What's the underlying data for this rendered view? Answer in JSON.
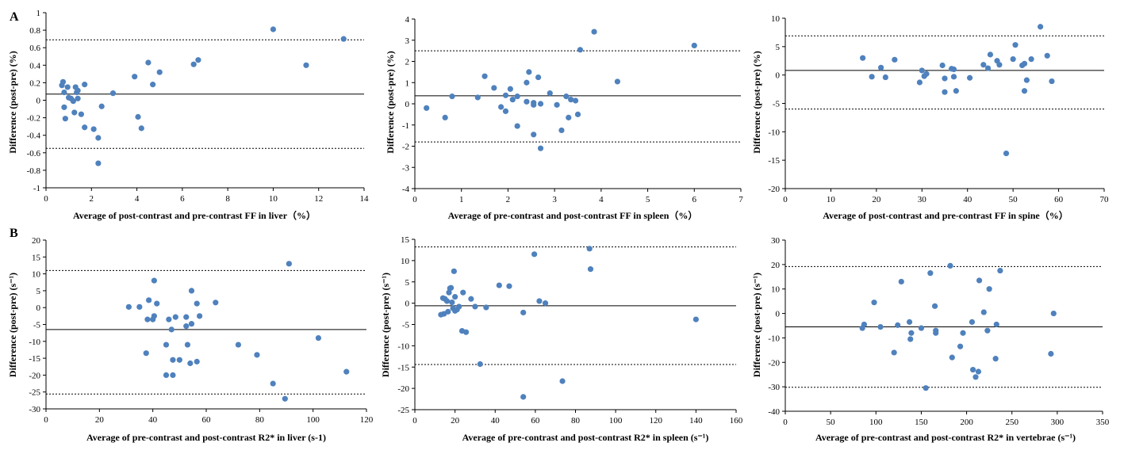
{
  "panel_labels": [
    "A",
    "B"
  ],
  "chart_data": [
    {
      "type": "scatter",
      "xlabel": "Average of post-contrast and pre-contrast FF in liver（%）",
      "ylabel": "Difference (post-pre) (%)",
      "xlim": [
        0,
        14
      ],
      "ylim": [
        -1,
        1
      ],
      "xticks": [
        0,
        2,
        4,
        6,
        8,
        10,
        12,
        14
      ],
      "yticks": [
        -1,
        -0.8,
        -0.6,
        -0.4,
        -0.2,
        0,
        0.2,
        0.4,
        0.6,
        0.8,
        1
      ],
      "mean": 0.07,
      "upper_loa": 0.69,
      "lower_loa": -0.55,
      "points": [
        [
          0.7,
          0.17
        ],
        [
          0.75,
          0.21
        ],
        [
          0.8,
          0.09
        ],
        [
          0.8,
          -0.08
        ],
        [
          0.85,
          -0.21
        ],
        [
          0.95,
          0.15
        ],
        [
          1.0,
          0.03
        ],
        [
          1.1,
          0.02
        ],
        [
          1.2,
          -0.01
        ],
        [
          1.25,
          -0.14
        ],
        [
          1.3,
          0.15
        ],
        [
          1.35,
          0.09
        ],
        [
          1.4,
          0.11
        ],
        [
          1.4,
          0.02
        ],
        [
          1.55,
          -0.16
        ],
        [
          1.7,
          -0.31
        ],
        [
          1.7,
          0.18
        ],
        [
          2.1,
          -0.33
        ],
        [
          2.3,
          -0.43
        ],
        [
          2.3,
          -0.72
        ],
        [
          2.45,
          -0.07
        ],
        [
          2.95,
          0.08
        ],
        [
          3.9,
          0.27
        ],
        [
          4.05,
          -0.19
        ],
        [
          4.2,
          -0.32
        ],
        [
          4.5,
          0.43
        ],
        [
          4.7,
          0.18
        ],
        [
          5.0,
          0.32
        ],
        [
          6.5,
          0.41
        ],
        [
          6.7,
          0.46
        ],
        [
          10.0,
          0.81
        ],
        [
          11.45,
          0.4
        ],
        [
          13.1,
          0.7
        ]
      ]
    },
    {
      "type": "scatter",
      "xlabel": "Average of pre-contrast and post-contrast FF in spleen（%）",
      "ylabel": "Difference (post-pre) (%)",
      "xlim": [
        0,
        7
      ],
      "ylim": [
        -4,
        4
      ],
      "xticks": [
        0,
        1,
        2,
        3,
        4,
        5,
        6,
        7
      ],
      "yticks": [
        -4,
        -3,
        -2,
        -1,
        0,
        1,
        2,
        3,
        4
      ],
      "mean": 0.38,
      "upper_loa": 2.5,
      "lower_loa": -1.8,
      "points": [
        [
          0.25,
          -0.2
        ],
        [
          0.65,
          -0.65
        ],
        [
          0.8,
          0.35
        ],
        [
          1.35,
          0.3
        ],
        [
          1.5,
          1.3
        ],
        [
          1.7,
          0.75
        ],
        [
          1.85,
          -0.15
        ],
        [
          1.95,
          0.4
        ],
        [
          1.95,
          -0.35
        ],
        [
          2.05,
          0.7
        ],
        [
          2.1,
          0.2
        ],
        [
          2.2,
          -1.05
        ],
        [
          2.2,
          0.35
        ],
        [
          2.4,
          1.0
        ],
        [
          2.4,
          0.1
        ],
        [
          2.45,
          1.5
        ],
        [
          2.55,
          -1.45
        ],
        [
          2.55,
          0.05
        ],
        [
          2.55,
          -0.05
        ],
        [
          2.65,
          1.25
        ],
        [
          2.7,
          0.0
        ],
        [
          2.7,
          -2.1
        ],
        [
          2.9,
          0.5
        ],
        [
          3.05,
          -0.05
        ],
        [
          3.15,
          -1.25
        ],
        [
          3.25,
          0.35
        ],
        [
          3.3,
          -0.65
        ],
        [
          3.35,
          0.2
        ],
        [
          3.45,
          0.15
        ],
        [
          3.5,
          -0.5
        ],
        [
          3.55,
          2.55
        ],
        [
          3.85,
          3.4
        ],
        [
          4.35,
          1.05
        ],
        [
          6.0,
          2.75
        ]
      ]
    },
    {
      "type": "scatter",
      "xlabel": "Average of post-contrast and pre-contrast FF in spine（%）",
      "ylabel": "Difference (post-pre) (%)",
      "xlim": [
        0,
        70
      ],
      "ylim": [
        -20,
        10
      ],
      "xticks": [
        0,
        10,
        20,
        30,
        40,
        50,
        60,
        70
      ],
      "yticks": [
        -20,
        -15,
        -10,
        -5,
        0,
        5,
        10
      ],
      "mean": 0.8,
      "upper_loa": 6.9,
      "lower_loa": -6.0,
      "points": [
        [
          17,
          3.0
        ],
        [
          19,
          -0.3
        ],
        [
          21,
          1.3
        ],
        [
          22,
          -0.4
        ],
        [
          24,
          2.7
        ],
        [
          29.5,
          -1.3
        ],
        [
          30,
          0.8
        ],
        [
          30.5,
          -0.2
        ],
        [
          31,
          0.2
        ],
        [
          34.5,
          1.7
        ],
        [
          35,
          -3.0
        ],
        [
          35,
          -0.6
        ],
        [
          36.5,
          1.1
        ],
        [
          37,
          1.0
        ],
        [
          37,
          -0.3
        ],
        [
          37.5,
          -2.8
        ],
        [
          40.5,
          -0.5
        ],
        [
          43.5,
          1.8
        ],
        [
          44.5,
          1.2
        ],
        [
          45,
          3.6
        ],
        [
          46.5,
          2.5
        ],
        [
          47,
          1.8
        ],
        [
          48.5,
          -13.8
        ],
        [
          50,
          2.8
        ],
        [
          50.5,
          5.3
        ],
        [
          52,
          1.7
        ],
        [
          52.5,
          2.0
        ],
        [
          52.5,
          -2.8
        ],
        [
          53,
          -0.9
        ],
        [
          54,
          2.8
        ],
        [
          56,
          8.5
        ],
        [
          57.5,
          3.4
        ],
        [
          58.5,
          -1.1
        ]
      ]
    },
    {
      "type": "scatter",
      "xlabel": "Average of pre-contrast and post-contrast R2* in liver (s-1)",
      "ylabel": "Difference (post-pre) (s⁻¹)",
      "xlim": [
        0,
        120
      ],
      "ylim": [
        -30,
        20
      ],
      "xticks": [
        0,
        20,
        40,
        60,
        80,
        100,
        120
      ],
      "yticks": [
        -30,
        -25,
        -20,
        -15,
        -10,
        -5,
        0,
        5,
        10,
        15,
        20
      ],
      "mean": -6.5,
      "upper_loa": 11.0,
      "lower_loa": -25.6,
      "points": [
        [
          31,
          0.2
        ],
        [
          35,
          0.2
        ],
        [
          37.5,
          -13.5
        ],
        [
          38,
          -3.5
        ],
        [
          38.5,
          2.2
        ],
        [
          40,
          -3.5
        ],
        [
          40.5,
          -2.5
        ],
        [
          40.5,
          8.0
        ],
        [
          41.5,
          1.2
        ],
        [
          45,
          -11
        ],
        [
          45,
          -20
        ],
        [
          46,
          -3.5
        ],
        [
          47,
          -6.5
        ],
        [
          47.5,
          -15.5
        ],
        [
          47.5,
          -20
        ],
        [
          48.5,
          -2.8
        ],
        [
          50,
          -15.5
        ],
        [
          52.5,
          -5.5
        ],
        [
          52.5,
          -2.8
        ],
        [
          53,
          -11
        ],
        [
          54,
          -16.5
        ],
        [
          54.5,
          -4.8
        ],
        [
          54.5,
          5.0
        ],
        [
          56.5,
          -16
        ],
        [
          56.5,
          1.2
        ],
        [
          57.5,
          -2.5
        ],
        [
          63.5,
          1.5
        ],
        [
          72,
          -11
        ],
        [
          79,
          -14
        ],
        [
          85,
          -22.5
        ],
        [
          89.5,
          -27
        ],
        [
          91,
          13
        ],
        [
          102,
          -9
        ],
        [
          112.5,
          -19
        ]
      ]
    },
    {
      "type": "scatter",
      "xlabel": "Average of pre-contrast and post-contrast R2* in spleen (s⁻¹)",
      "ylabel": "Difference (post-pre) (s⁻¹)",
      "xlim": [
        0,
        160
      ],
      "ylim": [
        -25,
        15
      ],
      "xticks": [
        0,
        20,
        40,
        60,
        80,
        100,
        120,
        140,
        160
      ],
      "yticks": [
        -25,
        -20,
        -15,
        -10,
        -5,
        0,
        5,
        10,
        15
      ],
      "mean": -0.6,
      "upper_loa": 13.2,
      "lower_loa": -14.4,
      "points": [
        [
          13,
          -2.7
        ],
        [
          14,
          1.2
        ],
        [
          14.5,
          -2.5
        ],
        [
          15,
          1.0
        ],
        [
          16,
          0.5
        ],
        [
          16.5,
          -2.0
        ],
        [
          17,
          2.5
        ],
        [
          17.5,
          3.5
        ],
        [
          18,
          3.6
        ],
        [
          18.5,
          0.2
        ],
        [
          19,
          -1.2
        ],
        [
          19.5,
          7.5
        ],
        [
          20,
          -1.8
        ],
        [
          20,
          1.5
        ],
        [
          21,
          -1.5
        ],
        [
          22,
          -0.8
        ],
        [
          23.5,
          -6.5
        ],
        [
          24,
          2.5
        ],
        [
          25.5,
          -6.8
        ],
        [
          28,
          1.0
        ],
        [
          30,
          -0.8
        ],
        [
          32.5,
          -14.3
        ],
        [
          35.5,
          -1.0
        ],
        [
          42,
          4.2
        ],
        [
          47,
          4.0
        ],
        [
          54,
          -2.2
        ],
        [
          54,
          -22
        ],
        [
          59.5,
          11.5
        ],
        [
          62,
          0.5
        ],
        [
          65,
          0.0
        ],
        [
          73.5,
          -18.3
        ],
        [
          87,
          12.8
        ],
        [
          87.5,
          8.0
        ],
        [
          140,
          -3.8
        ]
      ]
    },
    {
      "type": "scatter",
      "xlabel": "Average of pre-contrast and post-contrast R2* in vertebrae (s⁻¹)",
      "ylabel": "Difference (post-pre) (s⁻¹)",
      "xlim": [
        0,
        350
      ],
      "ylim": [
        -40,
        30
      ],
      "xticks": [
        0,
        50,
        100,
        150,
        200,
        250,
        300,
        350
      ],
      "yticks": [
        -40,
        -30,
        -20,
        -10,
        0,
        10,
        20,
        30
      ],
      "mean": -5.5,
      "upper_loa": 19.2,
      "lower_loa": -30.2,
      "points": [
        [
          85,
          -6
        ],
        [
          87,
          -4.5
        ],
        [
          98,
          4.5
        ],
        [
          105,
          -5.5
        ],
        [
          120,
          -16
        ],
        [
          124,
          -4.8
        ],
        [
          128,
          13
        ],
        [
          137,
          -3.5
        ],
        [
          139,
          -8
        ],
        [
          138,
          -10.5
        ],
        [
          150,
          -6
        ],
        [
          155,
          -30.5
        ],
        [
          160,
          16.5
        ],
        [
          166,
          -7
        ],
        [
          166,
          -8
        ],
        [
          165,
          3
        ],
        [
          193,
          -13.5
        ],
        [
          184,
          -18
        ],
        [
          182,
          19.5
        ],
        [
          196,
          -8
        ],
        [
          206,
          -3.5
        ],
        [
          207,
          -23
        ],
        [
          210,
          -26
        ],
        [
          213,
          -23.8
        ],
        [
          214,
          13.5
        ],
        [
          219,
          0.5
        ],
        [
          223,
          -7
        ],
        [
          225,
          10
        ],
        [
          233,
          -4.5
        ],
        [
          232,
          -18.5
        ],
        [
          237,
          17.5
        ],
        [
          293,
          -16.5
        ],
        [
          296,
          0
        ]
      ]
    }
  ]
}
